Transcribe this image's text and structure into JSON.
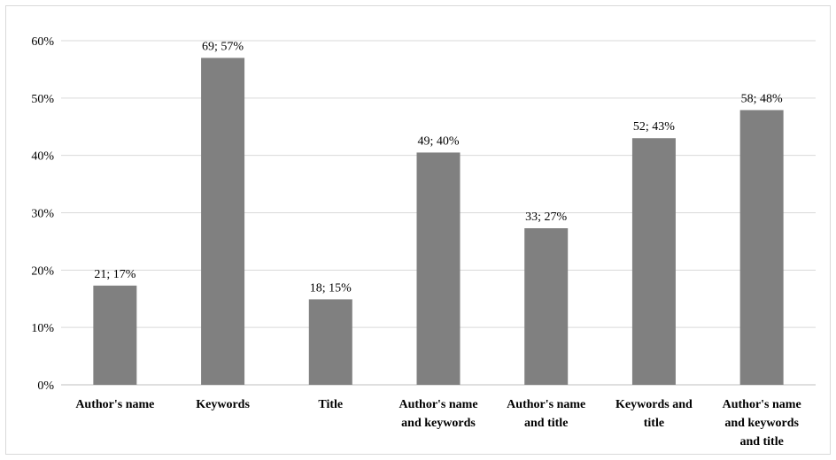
{
  "chart_data": {
    "type": "bar",
    "categories": [
      [
        "Author's name"
      ],
      [
        "Keywords"
      ],
      [
        "Title"
      ],
      [
        "Author's name",
        "and keywords"
      ],
      [
        "Author's name",
        "and title"
      ],
      [
        "Keywords and",
        "title"
      ],
      [
        "Author's name",
        "and keywords",
        "and title"
      ]
    ],
    "values": [
      17.3,
      57.0,
      14.9,
      40.5,
      27.3,
      43.0,
      47.9
    ],
    "data_labels": [
      "21; 17%",
      "69; 57%",
      "18; 15%",
      "49; 40%",
      "33; 27%",
      "52; 43%",
      "58; 48%"
    ],
    "ylim": [
      0,
      60
    ],
    "yticks": [
      0,
      10,
      20,
      30,
      40,
      50,
      60
    ],
    "ytick_labels": [
      "0%",
      "10%",
      "20%",
      "30%",
      "40%",
      "50%",
      "60%"
    ],
    "title": "",
    "xlabel": "",
    "ylabel": "",
    "grid": true,
    "bar_color": "#808080",
    "grid_color": "#d9d9d9"
  }
}
